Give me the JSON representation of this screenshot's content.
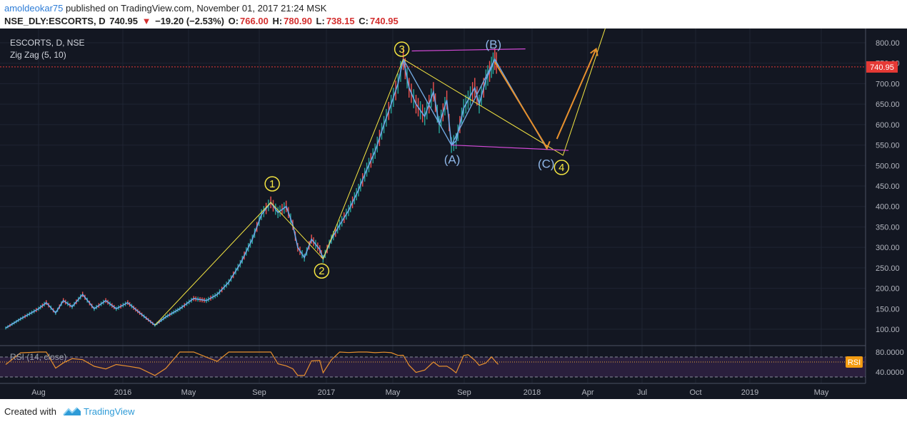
{
  "header": {
    "user": "amoldeokar75",
    "published": " published on TradingView.com, November 01, 2017 21:24 MSK",
    "symbol": "NSE_DLY:ESCORTS, D",
    "last": "740.95",
    "change_arrow": "▼",
    "change": "−19.20 (−2.53%)",
    "o_label": "O:",
    "o": "766.00",
    "h_label": "H:",
    "h": "780.90",
    "l_label": "L:",
    "l": "738.15",
    "c_label": "C:",
    "c": "740.95"
  },
  "chart": {
    "legend_symbol": "ESCORTS, D, NSE",
    "legend_indicator": "Zig Zag (5, 10)",
    "rsi_legend": "RSI (14, close)",
    "rsi_badge": "RSI",
    "price_badge": "740.95",
    "wave_labels": {
      "w1": "1",
      "w2": "2",
      "w3": "3",
      "w4": "4",
      "A": "(A)",
      "B": "(B)",
      "C": "(C)"
    }
  },
  "chart_data": [
    {
      "type": "line",
      "title": "ESCORTS, D, NSE",
      "x_tick_labels": [
        "Aug",
        "2016",
        "May",
        "Sep",
        "2017",
        "May",
        "Sep",
        "2018",
        "Apr",
        "Jul",
        "Oct",
        "2019",
        "May"
      ],
      "y_tick_labels": [
        "100.00",
        "150.00",
        "200.00",
        "250.00",
        "300.00",
        "350.00",
        "400.00",
        "450.00",
        "500.00",
        "550.00",
        "600.00",
        "650.00",
        "700.00",
        "750.00",
        "800.00"
      ],
      "ylim": [
        80,
        830
      ],
      "last_price": 740.95,
      "series": [
        {
          "name": "ESCORTS",
          "points": [
            [
              "2015-07-01",
              103
            ],
            [
              "2015-07-15",
              125
            ],
            [
              "2015-08-01",
              150
            ],
            [
              "2015-08-15",
              165
            ],
            [
              "2015-09-01",
              140
            ],
            [
              "2015-09-15",
              170
            ],
            [
              "2015-10-01",
              155
            ],
            [
              "2015-10-20",
              185
            ],
            [
              "2015-11-10",
              150
            ],
            [
              "2015-12-01",
              170
            ],
            [
              "2015-12-20",
              150
            ],
            [
              "2016-01-10",
              165
            ],
            [
              "2016-02-01",
              140
            ],
            [
              "2016-02-29",
              110
            ],
            [
              "2016-03-20",
              130
            ],
            [
              "2016-04-15",
              150
            ],
            [
              "2016-05-10",
              175
            ],
            [
              "2016-06-01",
              170
            ],
            [
              "2016-06-20",
              185
            ],
            [
              "2016-07-10",
              215
            ],
            [
              "2016-07-30",
              260
            ],
            [
              "2016-08-20",
              320
            ],
            [
              "2016-09-05",
              380
            ],
            [
              "2016-09-22",
              410
            ],
            [
              "2016-10-05",
              385
            ],
            [
              "2016-10-20",
              400
            ],
            [
              "2016-11-01",
              355
            ],
            [
              "2016-11-10",
              300
            ],
            [
              "2016-11-22",
              275
            ],
            [
              "2016-12-05",
              320
            ],
            [
              "2016-12-20",
              295
            ],
            [
              "2016-12-26",
              272
            ],
            [
              "2017-01-10",
              320
            ],
            [
              "2017-01-25",
              355
            ],
            [
              "2017-02-10",
              390
            ],
            [
              "2017-02-28",
              440
            ],
            [
              "2017-03-15",
              490
            ],
            [
              "2017-03-30",
              535
            ],
            [
              "2017-04-15",
              600
            ],
            [
              "2017-04-28",
              650
            ],
            [
              "2017-05-10",
              700
            ],
            [
              "2017-05-19",
              760
            ],
            [
              "2017-05-29",
              690
            ],
            [
              "2017-06-10",
              650
            ],
            [
              "2017-06-25",
              620
            ],
            [
              "2017-07-10",
              680
            ],
            [
              "2017-07-20",
              600
            ],
            [
              "2017-08-02",
              660
            ],
            [
              "2017-08-10",
              550
            ],
            [
              "2017-08-18",
              560
            ],
            [
              "2017-08-31",
              640
            ],
            [
              "2017-09-08",
              660
            ],
            [
              "2017-09-20",
              690
            ],
            [
              "2017-09-28",
              650
            ],
            [
              "2017-10-10",
              710
            ],
            [
              "2017-10-20",
              740
            ],
            [
              "2017-10-26",
              760
            ],
            [
              "2017-11-01",
              741
            ]
          ]
        },
        {
          "name": "Zig Zag (5, 10)",
          "points": [
            [
              "2016-02-29",
              110
            ],
            [
              "2016-09-22",
              410
            ],
            [
              "2016-12-26",
              272
            ],
            [
              "2017-05-19",
              760
            ],
            [
              "2017-08-10",
              550
            ],
            [
              "2017-10-26",
              760
            ]
          ]
        }
      ],
      "annotations": [
        {
          "text": "1",
          "x": "2016-09-22",
          "y": 410
        },
        {
          "text": "2",
          "x": "2016-12-26",
          "y": 272
        },
        {
          "text": "3",
          "x": "2017-05-19",
          "y": 760
        },
        {
          "text": "(A)",
          "x": "2017-08-10",
          "y": 550
        },
        {
          "text": "(B)",
          "x": "2017-10-26",
          "y": 760
        },
        {
          "text": "(C)",
          "x": "2018-01-25",
          "y": 540
        },
        {
          "text": "4",
          "x": "2018-02-20",
          "y": 525
        }
      ]
    },
    {
      "type": "line",
      "title": "RSI (14, close)",
      "y_tick_labels": [
        "40.0000",
        "80.0000"
      ],
      "ylim": [
        30,
        85
      ],
      "levels": [
        30,
        70
      ],
      "last_value": 60
    }
  ]
}
